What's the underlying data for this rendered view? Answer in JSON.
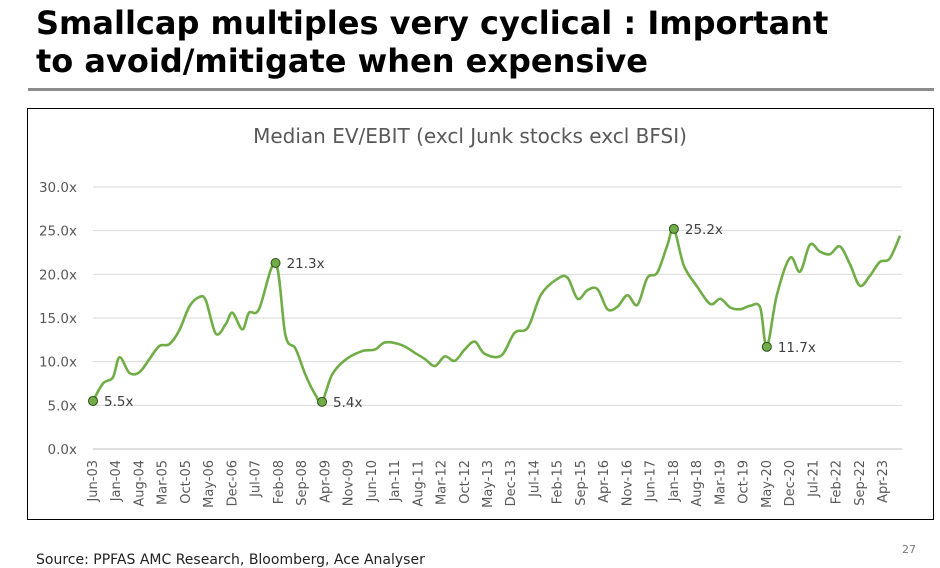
{
  "slide": {
    "title_line1": "Smallcap multiples very cyclical : Important",
    "title_line2": "to avoid/mitigate when expensive",
    "source": "Source: PPFAS AMC Research, Bloomberg, Ace Analyser",
    "page_number": "27"
  },
  "chart_data": {
    "type": "line",
    "title": "Median EV/EBIT (excl Junk stocks excl BFSI)",
    "xlabel": "",
    "ylabel": "",
    "ylim": [
      0,
      30
    ],
    "yticks": [
      "0.0x",
      "5.0x",
      "10.0x",
      "15.0x",
      "20.0x",
      "25.0x",
      "30.0x"
    ],
    "ytick_values": [
      0,
      5,
      10,
      15,
      20,
      25,
      30
    ],
    "xticks": [
      "Jun-03",
      "Jan-04",
      "Aug-04",
      "Mar-05",
      "Oct-05",
      "May-06",
      "Dec-06",
      "Jul-07",
      "Feb-08",
      "Sep-08",
      "Apr-09",
      "Nov-09",
      "Jun-10",
      "Jan-11",
      "Aug-11",
      "Mar-12",
      "Oct-12",
      "May-13",
      "Dec-13",
      "Jul-14",
      "Feb-15",
      "Sep-15",
      "Apr-16",
      "Nov-16",
      "Jun-17",
      "Jan-18",
      "Aug-18",
      "Mar-19",
      "Oct-19",
      "May-20",
      "Dec-20",
      "Jul-21",
      "Feb-22",
      "Sep-22",
      "Apr-23"
    ],
    "grid": true,
    "line_color": "#70ad47",
    "series": [
      {
        "name": "",
        "points": [
          [
            "Jun-03",
            5.5
          ],
          [
            "Sep-03",
            7.5
          ],
          [
            "Dec-03",
            8.2
          ],
          [
            "Feb-04",
            10.5
          ],
          [
            "May-04",
            8.7
          ],
          [
            "Aug-04",
            8.8
          ],
          [
            "Nov-04",
            10.3
          ],
          [
            "Feb-05",
            11.8
          ],
          [
            "May-05",
            12.0
          ],
          [
            "Aug-05",
            13.6
          ],
          [
            "Nov-05",
            16.3
          ],
          [
            "Feb-06",
            17.4
          ],
          [
            "Apr-06",
            17.0
          ],
          [
            "Jul-06",
            13.2
          ],
          [
            "Oct-06",
            14.3
          ],
          [
            "Dec-06",
            15.6
          ],
          [
            "Mar-07",
            13.7
          ],
          [
            "May-07",
            15.6
          ],
          [
            "Aug-07",
            16.0
          ],
          [
            "Jan-08",
            21.3
          ],
          [
            "Apr-08",
            13.0
          ],
          [
            "Jul-08",
            11.5
          ],
          [
            "Oct-08",
            8.5
          ],
          [
            "Jan-09",
            6.2
          ],
          [
            "Mar-09",
            5.4
          ],
          [
            "Jun-09",
            8.5
          ],
          [
            "Oct-09",
            10.2
          ],
          [
            "Mar-10",
            11.2
          ],
          [
            "Jul-10",
            11.4
          ],
          [
            "Oct-10",
            12.2
          ],
          [
            "Mar-11",
            11.9
          ],
          [
            "Jul-11",
            11.0
          ],
          [
            "Oct-11",
            10.3
          ],
          [
            "Jan-12",
            9.5
          ],
          [
            "Apr-12",
            10.6
          ],
          [
            "Jul-12",
            10.1
          ],
          [
            "Oct-12",
            11.4
          ],
          [
            "Jan-13",
            12.3
          ],
          [
            "Apr-13",
            10.9
          ],
          [
            "Sep-13",
            10.7
          ],
          [
            "Jan-14",
            13.3
          ],
          [
            "May-14",
            13.9
          ],
          [
            "Sep-14",
            17.7
          ],
          [
            "Feb-15",
            19.5
          ],
          [
            "May-15",
            19.6
          ],
          [
            "Aug-15",
            17.2
          ],
          [
            "Nov-15",
            18.2
          ],
          [
            "Feb-16",
            18.3
          ],
          [
            "May-16",
            16.0
          ],
          [
            "Aug-16",
            16.3
          ],
          [
            "Nov-16",
            17.6
          ],
          [
            "Feb-17",
            16.5
          ],
          [
            "May-17",
            19.6
          ],
          [
            "Aug-17",
            20.2
          ],
          [
            "Nov-17",
            23.3
          ],
          [
            "Jan-18",
            25.2
          ],
          [
            "Apr-18",
            21.0
          ],
          [
            "Aug-18",
            18.6
          ],
          [
            "Dec-18",
            16.6
          ],
          [
            "Mar-19",
            17.2
          ],
          [
            "Jun-19",
            16.2
          ],
          [
            "Sep-19",
            16.0
          ],
          [
            "Dec-19",
            16.4
          ],
          [
            "Mar-20",
            16.2
          ],
          [
            "May-20",
            11.7
          ],
          [
            "Aug-20",
            17.6
          ],
          [
            "Dec-20",
            21.9
          ],
          [
            "Mar-21",
            20.3
          ],
          [
            "Jun-21",
            23.4
          ],
          [
            "Sep-21",
            22.6
          ],
          [
            "Dec-21",
            22.3
          ],
          [
            "Mar-22",
            23.2
          ],
          [
            "Jun-22",
            21.2
          ],
          [
            "Sep-22",
            18.7
          ],
          [
            "Dec-22",
            19.8
          ],
          [
            "Mar-23",
            21.4
          ],
          [
            "Jun-23",
            21.8
          ],
          [
            "Sep-23",
            24.3
          ]
        ]
      }
    ],
    "annotations": [
      {
        "label": "5.5x",
        "x": "Jun-03",
        "y": 5.5
      },
      {
        "label": "21.3x",
        "x": "Jan-08",
        "y": 21.3
      },
      {
        "label": "5.4x",
        "x": "Mar-09",
        "y": 5.4
      },
      {
        "label": "25.2x",
        "x": "Jan-18",
        "y": 25.2
      },
      {
        "label": "11.7x",
        "x": "May-20",
        "y": 11.7
      }
    ]
  }
}
